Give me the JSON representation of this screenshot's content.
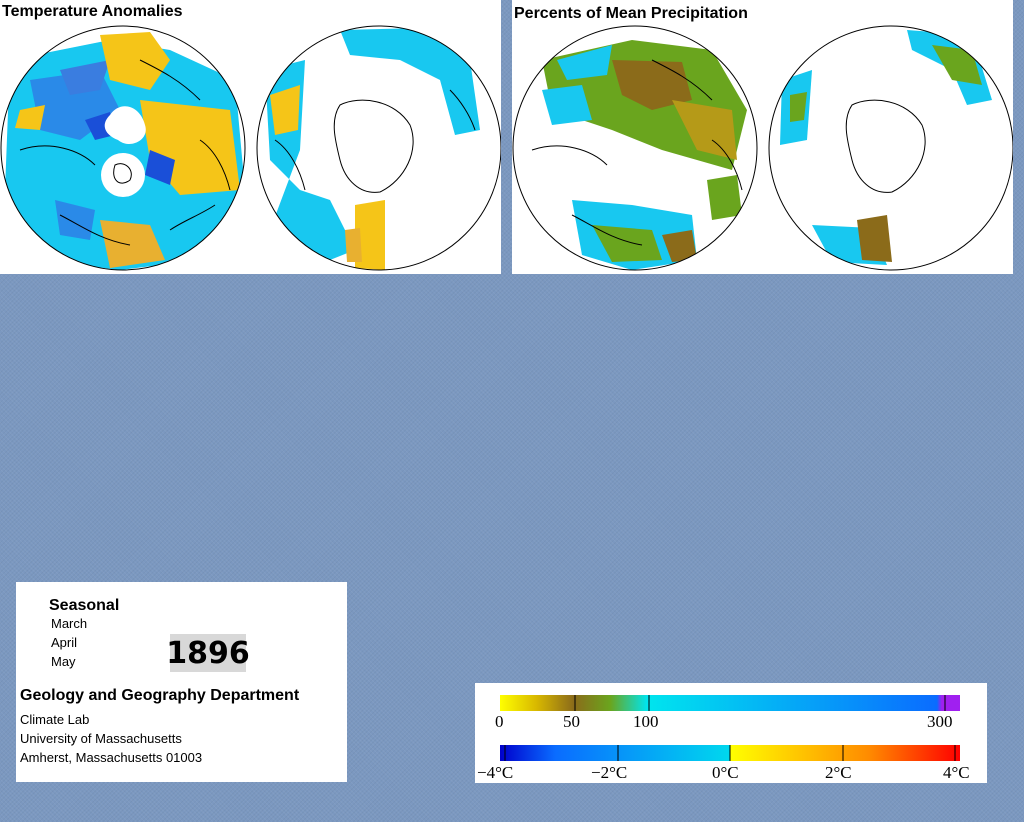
{
  "temperature_panel": {
    "title": "Temperature Anomalies"
  },
  "precipitation_panel": {
    "title": "Percents of Mean Precipitation"
  },
  "info": {
    "season_label": "Seasonal",
    "months": [
      "March",
      "April",
      "May"
    ],
    "year": "1896",
    "department": "Geology and Geography Department",
    "lab": "Climate Lab",
    "university": "University of Massachusetts",
    "address": "Amherst, Massachusetts 01003"
  },
  "precip_legend": {
    "ticks": [
      "0",
      "50",
      "100",
      "300"
    ],
    "colors": [
      "#ffff00",
      "#c8a000",
      "#8b6b1a",
      "#6aa51e",
      "#00e5ee",
      "#0a6cff",
      "#a020f0"
    ]
  },
  "temp_legend": {
    "ticks": [
      "−4°C",
      "−2°C",
      "0°C",
      "2°C",
      "4°C"
    ],
    "colors": [
      "#0000cc",
      "#0a6cff",
      "#00d8ee",
      "#ffff00",
      "#ff8c00",
      "#ff0000"
    ]
  },
  "colors": {
    "background": "#7b98c0",
    "cyan": "#18c8f0",
    "blue": "#2a8ae8",
    "deep_blue": "#1a4fd8",
    "yellow": "#f5c518",
    "orange": "#e8b030",
    "olive": "#b59a18",
    "brown": "#8b6b1a",
    "green": "#6aa51e"
  }
}
